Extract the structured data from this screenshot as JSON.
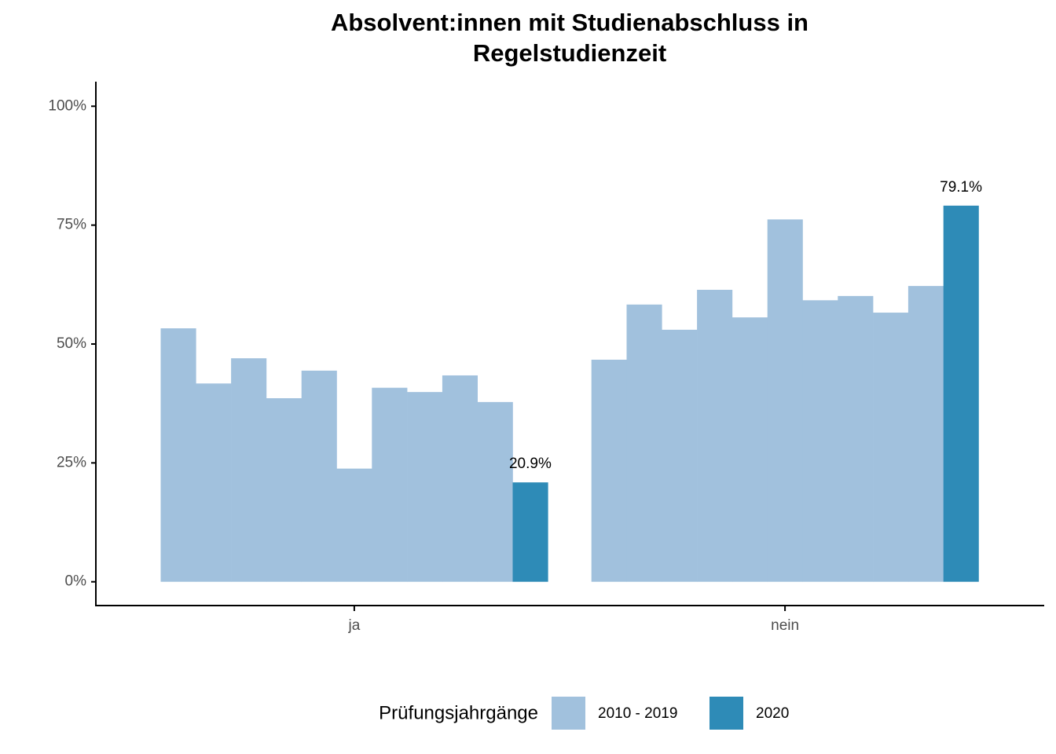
{
  "chart_data": {
    "type": "bar",
    "title": [
      "Absolvent:innen mit Studienabschluss in",
      "Regelstudienzeit"
    ],
    "categories": [
      "ja",
      "nein"
    ],
    "legend_title": "Prüfungsjahrgänge",
    "legend_position": "bottom",
    "series": [
      {
        "name": "2010 - 2019",
        "color": "#a1c1dd",
        "values": [
          [
            53.3,
            41.7,
            47.0,
            38.6,
            44.4,
            23.8,
            40.8,
            39.9,
            43.4,
            37.8
          ],
          [
            46.7,
            58.3,
            53.0,
            61.4,
            55.6,
            76.2,
            59.2,
            60.1,
            56.6,
            62.2
          ]
        ]
      },
      {
        "name": "2020",
        "color": "#2e8bb7",
        "values": [
          20.9,
          79.1
        ],
        "value_labels": [
          "20.9%",
          "79.1%"
        ]
      }
    ],
    "ylim": [
      -5,
      105
    ],
    "yticks": [
      {
        "value": 0,
        "label": "0%"
      },
      {
        "value": 25,
        "label": "25%"
      },
      {
        "value": 50,
        "label": "50%"
      },
      {
        "value": 75,
        "label": "75%"
      },
      {
        "value": 100,
        "label": "100%"
      }
    ]
  }
}
